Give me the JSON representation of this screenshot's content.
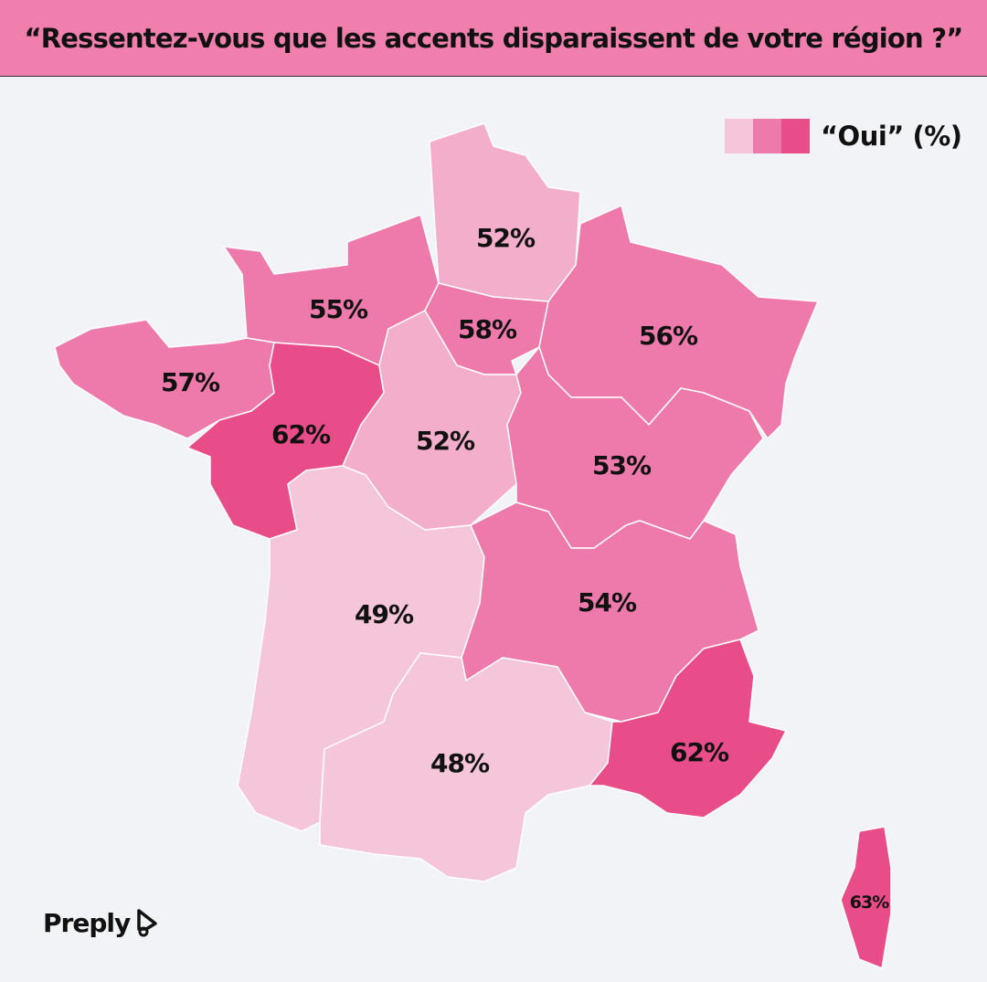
{
  "title": "“Ressentez-vous que les accents disparaissent de votre région ?”",
  "legend": {
    "label": "“Oui” (%)",
    "colors": [
      "#f5c6da",
      "#ed7aaa",
      "#e84d8a"
    ]
  },
  "colors": {
    "header": "#f07fae",
    "background": "#f2f3f7",
    "low": "#f5c6da",
    "low_mid": "#f3aecb",
    "mid": "#ed7aaa",
    "high": "#e84d8a"
  },
  "regions": [
    {
      "value": "52%",
      "color": "#f3aecb"
    },
    {
      "value": "55%",
      "color": "#ed7aaa"
    },
    {
      "value": "58%",
      "color": "#ed7aaa"
    },
    {
      "value": "56%",
      "color": "#ed7aaa"
    },
    {
      "value": "57%",
      "color": "#ed7aaa"
    },
    {
      "value": "62%",
      "color": "#e84d8a"
    },
    {
      "value": "52%",
      "color": "#f3aecb"
    },
    {
      "value": "53%",
      "color": "#ed7aaa"
    },
    {
      "value": "49%",
      "color": "#f5c6da"
    },
    {
      "value": "54%",
      "color": "#ed7aaa"
    },
    {
      "value": "48%",
      "color": "#f5c6da"
    },
    {
      "value": "62%",
      "color": "#e84d8a"
    },
    {
      "value": "63%",
      "color": "#e84d8a"
    }
  ],
  "logo": {
    "text": "Preply"
  }
}
